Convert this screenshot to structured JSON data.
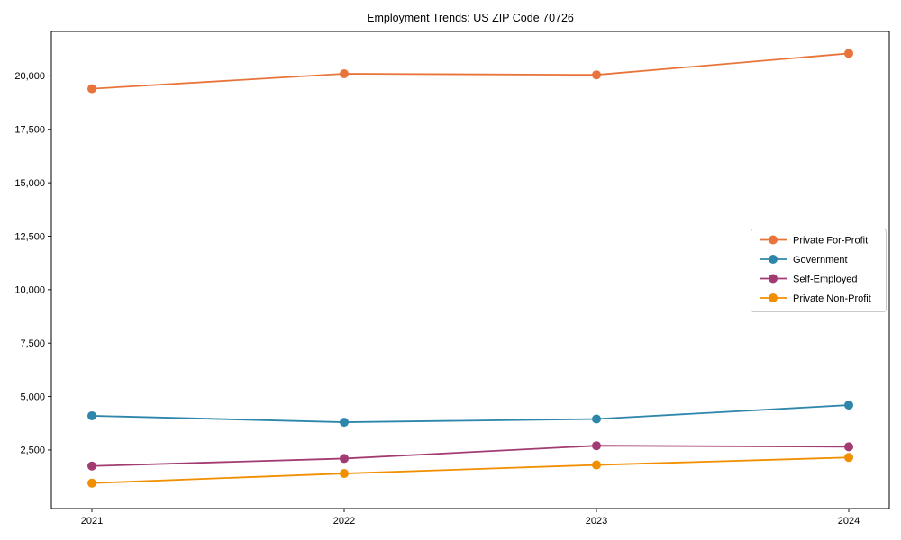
{
  "chart_data": {
    "type": "line",
    "title": "Employment Trends: US ZIP Code 70726",
    "x": [
      "2021",
      "2022",
      "2023",
      "2024"
    ],
    "series": [
      {
        "name": "Private For-Profit",
        "color": "#E8743B",
        "values": [
          19400,
          20100,
          20050,
          21050
        ]
      },
      {
        "name": "Government",
        "color": "#2E86AB",
        "values": [
          4100,
          3800,
          3950,
          4600
        ]
      },
      {
        "name": "Self-Employed",
        "color": "#A23B72",
        "values": [
          1750,
          2100,
          2700,
          2650
        ]
      },
      {
        "name": "Private Non-Profit",
        "color": "#F18F01",
        "values": [
          950,
          1400,
          1800,
          2150
        ]
      }
    ],
    "xlabel": "",
    "ylabel": "",
    "yticks": [
      2500,
      5000,
      7500,
      10000,
      12500,
      15000,
      17500,
      20000
    ],
    "ylim": [
      -240,
      22080
    ],
    "grid": false,
    "legend_position": "center right",
    "axis_color": "#000000",
    "background_color": "#ffffff"
  }
}
